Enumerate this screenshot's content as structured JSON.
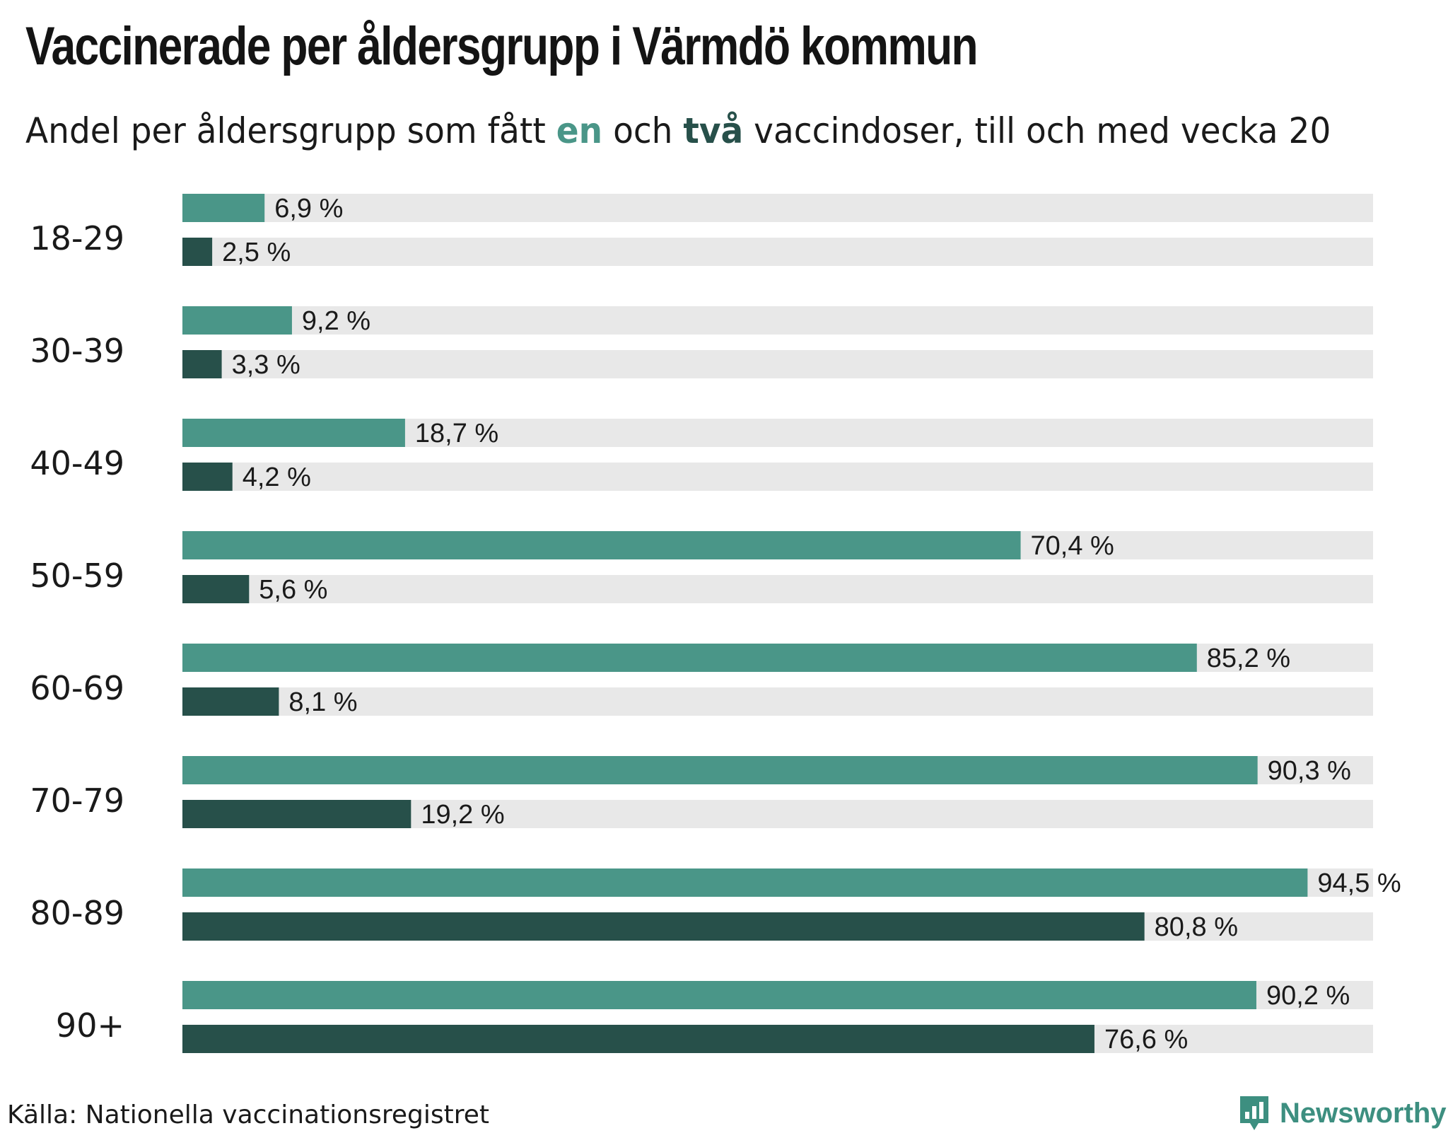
{
  "title": "Vaccinerade per åldersgrupp i Värmdö kommun",
  "subtitle": {
    "before": "Andel per åldersgrupp som fått ",
    "one": "en",
    "middle": " och ",
    "two": "två",
    "after": " vaccindoser, till och med vecka 20"
  },
  "source": "Källa: Nationella vaccinationsregistret",
  "brand": "Newsworthy",
  "logo_icon": "newsworthy-chart-bubble-icon",
  "colors": {
    "one_dose": "#4a9688",
    "two_doses": "#27504a",
    "track": "#e8e8e8",
    "brand": "#3d8f80"
  },
  "chart_data": {
    "type": "bar",
    "orientation": "horizontal",
    "title": "Vaccinerade per åldersgrupp i Värmdö kommun",
    "subtitle": "Andel per åldersgrupp som fått en och två vaccindoser, till och med vecka 20",
    "categories": [
      "18-29",
      "30-39",
      "40-49",
      "50-59",
      "60-69",
      "70-79",
      "80-89",
      "90+"
    ],
    "xlim": [
      0,
      100
    ],
    "unit": "%",
    "grid": false,
    "legend": "inline-subtitle",
    "series": [
      {
        "name": "en",
        "values": [
          6.9,
          9.2,
          18.7,
          70.4,
          85.2,
          90.3,
          94.5,
          90.2
        ],
        "labels": [
          "6,9 %",
          "9,2 %",
          "18,7 %",
          "70,4 %",
          "85,2 %",
          "90,3 %",
          "94,5 %",
          "90,2 %"
        ]
      },
      {
        "name": "två",
        "values": [
          2.5,
          3.3,
          4.2,
          5.6,
          8.1,
          19.2,
          80.8,
          76.6
        ],
        "labels": [
          "2,5 %",
          "3,3 %",
          "4,2 %",
          "5,6 %",
          "8,1 %",
          "19,2 %",
          "80,8 %",
          "76,6 %"
        ]
      }
    ]
  }
}
